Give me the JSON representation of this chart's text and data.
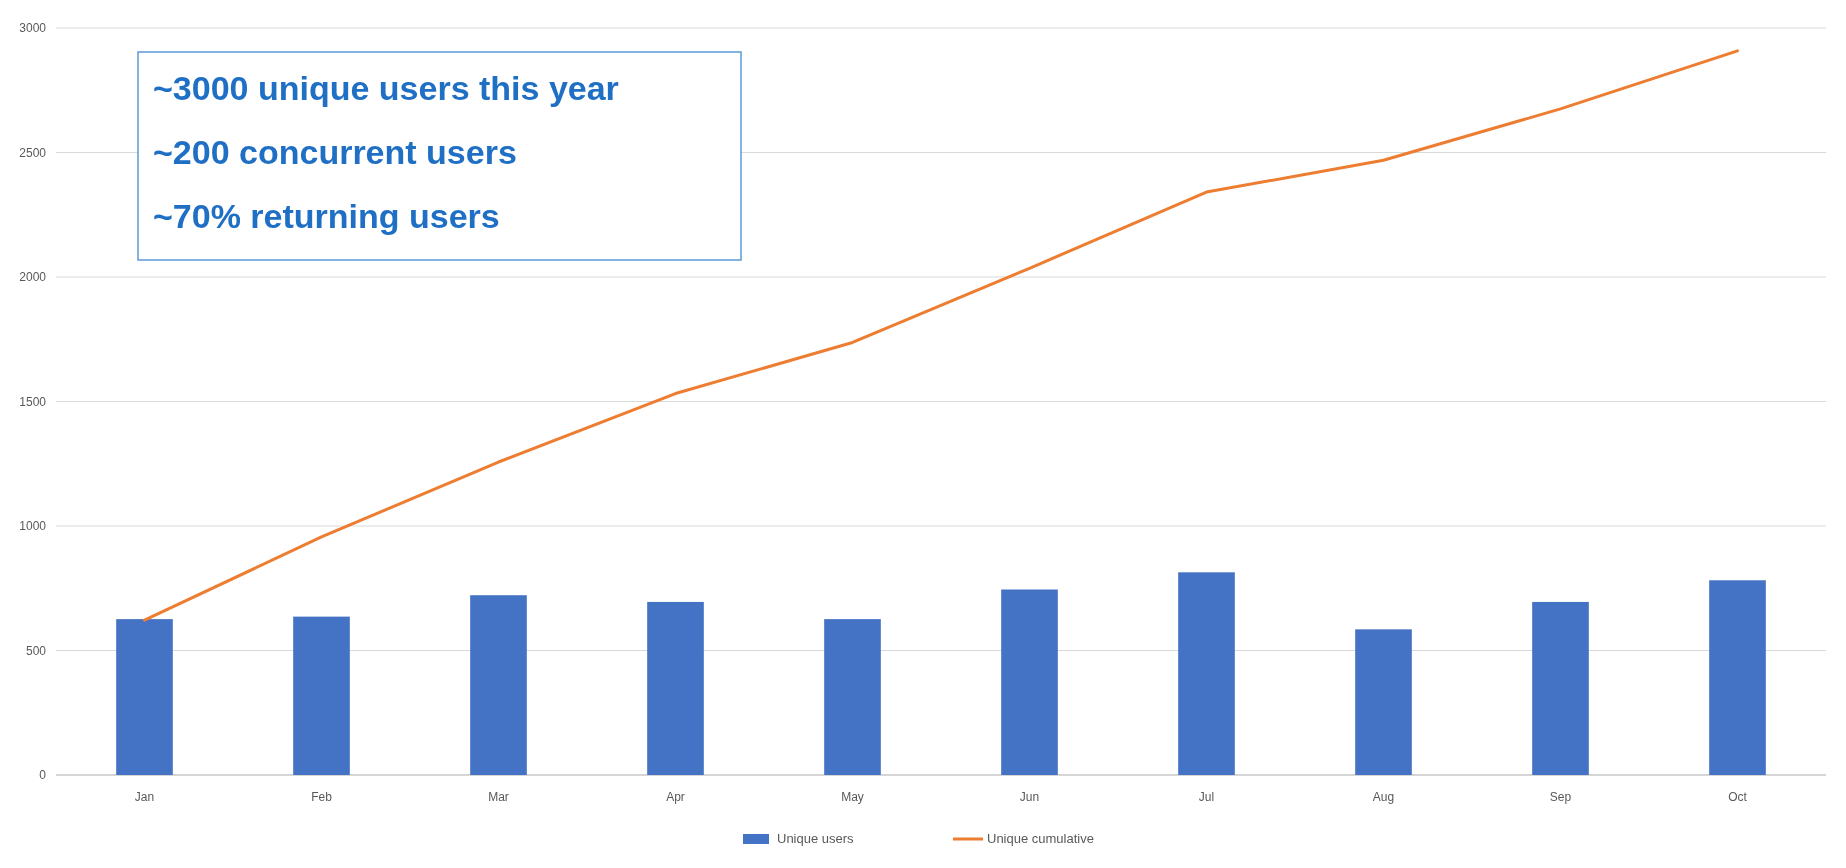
{
  "chart_data": {
    "type": "bar",
    "categories": [
      "Jan",
      "Feb",
      "Mar",
      "Apr",
      "May",
      "Jun",
      "Jul",
      "Aug",
      "Sep",
      "Oct"
    ],
    "series": [
      {
        "name": "Unique users",
        "color": "#4472c4",
        "values": [
          626,
          636,
          722,
          695,
          626,
          745,
          814,
          585,
          695,
          782
        ]
      },
      {
        "name": "Unique cumulative",
        "type": "line",
        "color": "#ed7d31",
        "values": [
          622,
          956,
          1257,
          1532,
          1737,
          2035,
          2341,
          2469,
          2675,
          2908
        ]
      }
    ],
    "ylim": [
      0,
      3000
    ],
    "yticks": [
      0,
      500,
      1000,
      1500,
      2000,
      2500,
      3000
    ],
    "grid": "y",
    "legend": "bottom",
    "marker": "none",
    "annotations": [
      "~3000 unique users this year",
      "~200 concurrent users",
      "~70% returning users"
    ]
  }
}
